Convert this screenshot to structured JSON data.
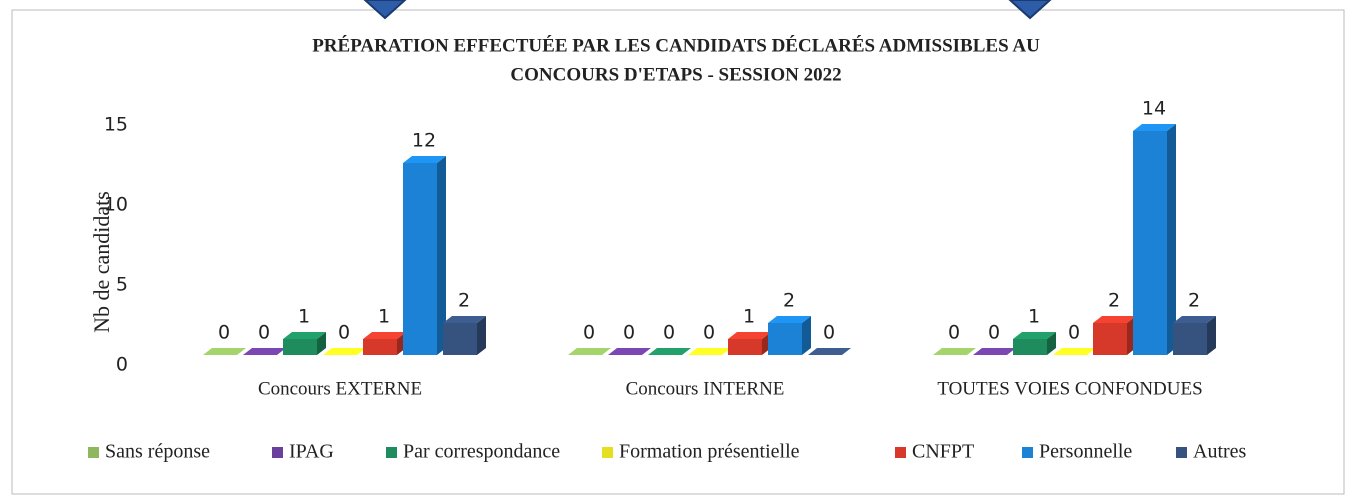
{
  "chart_data": {
    "type": "bar3d",
    "title": [
      "PRÉPARATION EFFECTUÉE PAR LES CANDIDATS DÉCLARÉS ADMISSIBLES AU",
      "CONCOURS D'ETAPS - SESSION 2022"
    ],
    "y_label": "Nb de candidats",
    "categories": [
      "Concours EXTERNE",
      "Concours INTERNE",
      "TOUTES VOIES CONFONDUES"
    ],
    "series": [
      {
        "name": "Sans réponse",
        "color": "#8fb85e",
        "values": [
          0,
          0,
          0
        ]
      },
      {
        "name": "IPAG",
        "color": "#6b3f9c",
        "values": [
          0,
          0,
          0
        ]
      },
      {
        "name": "Par correspondance",
        "color": "#1e8c5c",
        "values": [
          1,
          0,
          1
        ]
      },
      {
        "name": "Formation présentielle",
        "color": "#e6df1f",
        "values": [
          0,
          0,
          0
        ]
      },
      {
        "name": "CNFPT",
        "color": "#d6392a",
        "values": [
          1,
          1,
          2
        ]
      },
      {
        "name": "Personnelle",
        "color": "#1b82d6",
        "values": [
          12,
          2,
          14
        ]
      },
      {
        "name": "Autres",
        "color": "#36527f",
        "values": [
          2,
          0,
          2
        ]
      }
    ],
    "ylim": [
      0,
      15
    ],
    "yticks": [
      0,
      5,
      10,
      15
    ],
    "grid": false,
    "legend": "bottom"
  }
}
